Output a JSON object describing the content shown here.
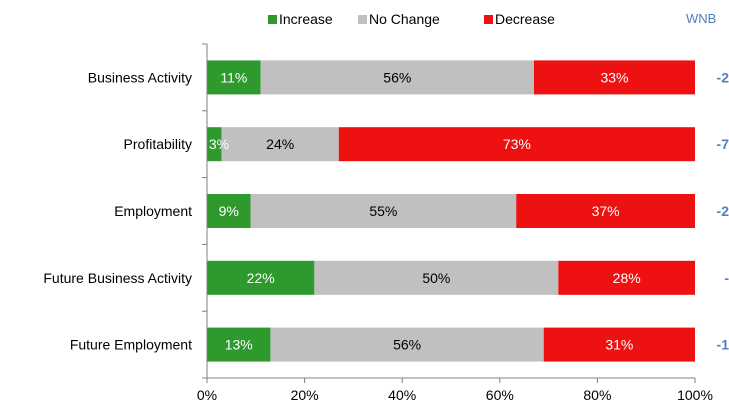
{
  "chart_data": {
    "type": "bar",
    "orientation": "horizontal",
    "stacked": true,
    "categories": [
      "Business Activity",
      "Profitability",
      "Employment",
      "Future Business Activity",
      "Future Employment"
    ],
    "series": [
      {
        "name": "Increase",
        "color": "#2e9a2e",
        "values": [
          11,
          3,
          9,
          22,
          13
        ],
        "labels": [
          "11%",
          "3%",
          "9%",
          "22%",
          "13%"
        ],
        "label_color": "#ffffff"
      },
      {
        "name": "No Change",
        "color": "#c0c0c0",
        "values": [
          56,
          24,
          55,
          50,
          56
        ],
        "labels": [
          "56%",
          "24%",
          "55%",
          "50%",
          "56%"
        ],
        "label_color": "#000000"
      },
      {
        "name": "Decrease",
        "color": "#ee1111",
        "values": [
          33,
          73,
          37,
          28,
          31
        ],
        "labels": [
          "33%",
          "73%",
          "37%",
          "28%",
          "31%"
        ],
        "label_color": "#ffffff"
      }
    ],
    "xlim": [
      0,
      100
    ],
    "xticks": [
      "0%",
      "20%",
      "40%",
      "60%",
      "80%",
      "100%"
    ],
    "legend_position": "top",
    "grid": false,
    "wnb": {
      "header": "WNB",
      "values": [
        "-2",
        "-7",
        "-2",
        "-",
        "-1"
      ],
      "color": "#4f81bd"
    }
  }
}
